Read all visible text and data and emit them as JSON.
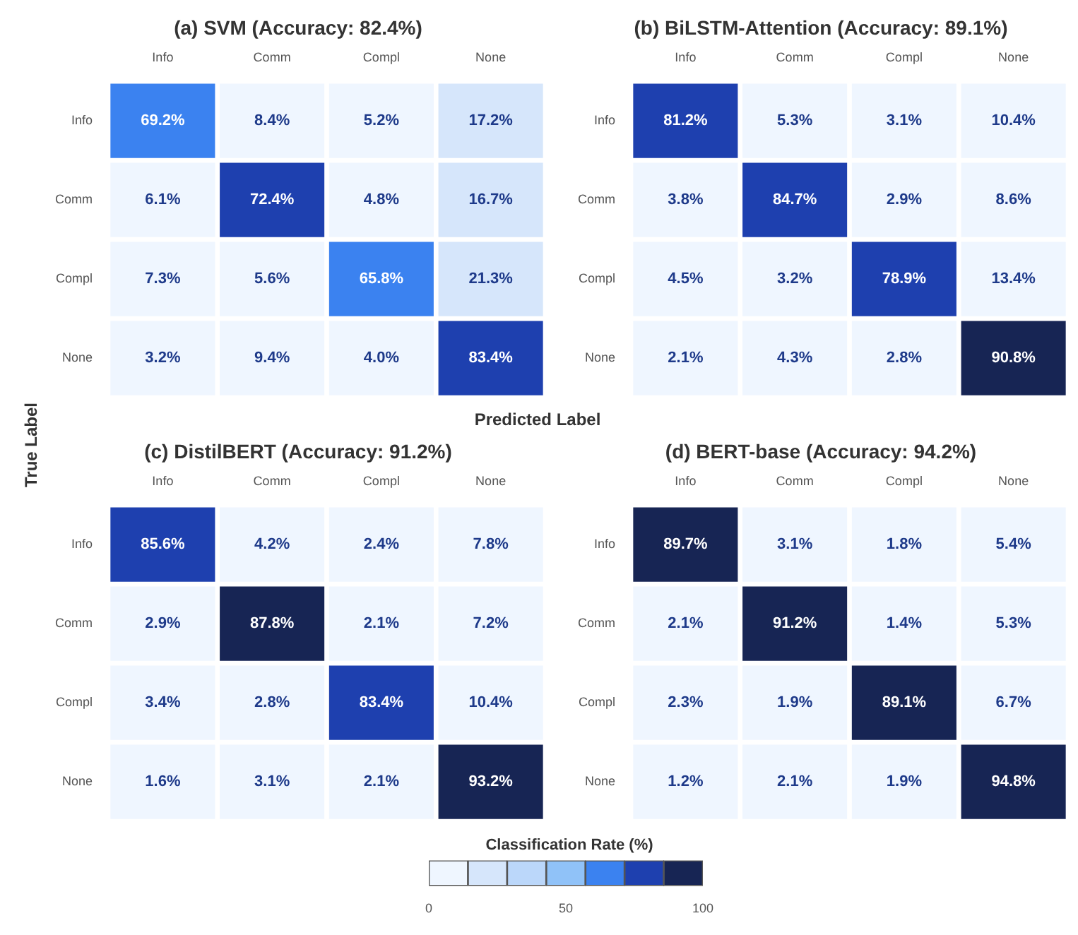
{
  "chart_data": [
    {
      "type": "heatmap",
      "title": "(a) SVM (Accuracy: 82.4%)",
      "xlabel": "Predicted Label",
      "ylabel": "True Label",
      "clabel": "Classification Rate (%)",
      "clim": [
        0,
        100
      ],
      "cticks": [
        0,
        50,
        100
      ],
      "colors": [
        "#eff6ff",
        "#d6e6fb",
        "#bbd7fa",
        "#90c2f8",
        "#3b82f0",
        "#1e40af",
        "#172554"
      ],
      "categories": [
        "Info",
        "Comm",
        "Compl",
        "None"
      ],
      "y_categories": [
        "Info",
        "Comm",
        "Compl",
        "None"
      ],
      "cells": [
        [
          69.2,
          8.4,
          5.2,
          17.2
        ],
        [
          6.1,
          72.4,
          4.8,
          16.7
        ],
        [
          7.3,
          5.6,
          65.8,
          21.3
        ],
        [
          3.2,
          9.4,
          4.0,
          83.4
        ]
      ],
      "cell_labels": [
        [
          "69.2%",
          "8.4%",
          "5.2%",
          "17.2%"
        ],
        [
          "6.1%",
          "72.4%",
          "4.8%",
          "16.7%"
        ],
        [
          "7.3%",
          "5.6%",
          "65.8%",
          "21.3%"
        ],
        [
          "3.2%",
          "9.4%",
          "4.0%",
          "83.4%"
        ]
      ]
    },
    {
      "type": "heatmap",
      "title": "(b) BiLSTM-Attention (Accuracy: 89.1%)",
      "categories": [
        "Info",
        "Comm",
        "Compl",
        "None"
      ],
      "y_categories": [
        "Info",
        "Comm",
        "Compl",
        "None"
      ],
      "cells": [
        [
          81.2,
          5.3,
          3.1,
          10.4
        ],
        [
          3.8,
          84.7,
          2.9,
          8.6
        ],
        [
          4.5,
          3.2,
          78.9,
          13.4
        ],
        [
          2.1,
          4.3,
          2.8,
          90.8
        ]
      ],
      "cell_labels": [
        [
          "81.2%",
          "5.3%",
          "3.1%",
          "10.4%"
        ],
        [
          "3.8%",
          "84.7%",
          "2.9%",
          "8.6%"
        ],
        [
          "4.5%",
          "3.2%",
          "78.9%",
          "13.4%"
        ],
        [
          "2.1%",
          "4.3%",
          "2.8%",
          "90.8%"
        ]
      ]
    },
    {
      "type": "heatmap",
      "title": "(c) DistilBERT (Accuracy: 91.2%)",
      "categories": [
        "Info",
        "Comm",
        "Compl",
        "None"
      ],
      "y_categories": [
        "Info",
        "Comm",
        "Compl",
        "None"
      ],
      "cells": [
        [
          85.6,
          4.2,
          2.4,
          7.8
        ],
        [
          2.9,
          87.8,
          2.1,
          7.2
        ],
        [
          3.4,
          2.8,
          83.4,
          10.4
        ],
        [
          1.6,
          3.1,
          2.1,
          93.2
        ]
      ],
      "cell_labels": [
        [
          "85.6%",
          "4.2%",
          "2.4%",
          "7.8%"
        ],
        [
          "2.9%",
          "87.8%",
          "2.1%",
          "7.2%"
        ],
        [
          "3.4%",
          "2.8%",
          "83.4%",
          "10.4%"
        ],
        [
          "1.6%",
          "3.1%",
          "2.1%",
          "93.2%"
        ]
      ]
    },
    {
      "type": "heatmap",
      "title": "(d) BERT-base (Accuracy: 94.2%)",
      "categories": [
        "Info",
        "Comm",
        "Compl",
        "None"
      ],
      "y_categories": [
        "Info",
        "Comm",
        "Compl",
        "None"
      ],
      "cells": [
        [
          89.7,
          3.1,
          1.8,
          5.4
        ],
        [
          2.1,
          91.2,
          1.4,
          5.3
        ],
        [
          2.3,
          1.9,
          89.1,
          6.7
        ],
        [
          1.2,
          2.1,
          1.9,
          94.8
        ]
      ],
      "cell_labels": [
        [
          "89.7%",
          "3.1%",
          "1.8%",
          "5.4%"
        ],
        [
          "2.1%",
          "91.2%",
          "1.4%",
          "5.3%"
        ],
        [
          "2.3%",
          "1.9%",
          "89.1%",
          "6.7%"
        ],
        [
          "1.2%",
          "2.1%",
          "1.9%",
          "94.8%"
        ]
      ]
    }
  ]
}
